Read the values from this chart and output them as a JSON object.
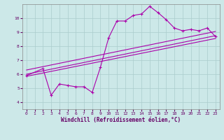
{
  "xlabel": "Windchill (Refroidissement éolien,°C)",
  "bg_color": "#cce8e8",
  "line_color": "#aa00aa",
  "xlim": [
    -0.5,
    23.5
  ],
  "ylim": [
    3.5,
    11.0
  ],
  "xticks": [
    0,
    1,
    2,
    3,
    4,
    5,
    6,
    7,
    8,
    9,
    10,
    11,
    12,
    13,
    14,
    15,
    16,
    17,
    18,
    19,
    20,
    21,
    22,
    23
  ],
  "yticks": [
    4,
    5,
    6,
    7,
    8,
    9,
    10
  ],
  "grid_color": "#aacccc",
  "series1_x": [
    0,
    2,
    3,
    4,
    5,
    6,
    7,
    8,
    9,
    10,
    11,
    12,
    13,
    14,
    15,
    16,
    17,
    18,
    19,
    20,
    21,
    22,
    23
  ],
  "series1_y": [
    5.9,
    6.4,
    4.5,
    5.3,
    5.2,
    5.1,
    5.1,
    4.7,
    6.5,
    8.6,
    9.8,
    9.8,
    10.2,
    10.3,
    10.85,
    10.4,
    9.9,
    9.3,
    9.1,
    9.2,
    9.1,
    9.3,
    8.7
  ],
  "line2_x": [
    0,
    23
  ],
  "line2_y": [
    5.85,
    8.55
  ],
  "line3_x": [
    0,
    23
  ],
  "line3_y": [
    6.0,
    8.75
  ],
  "line4_x": [
    0,
    23
  ],
  "line4_y": [
    6.3,
    9.05
  ]
}
